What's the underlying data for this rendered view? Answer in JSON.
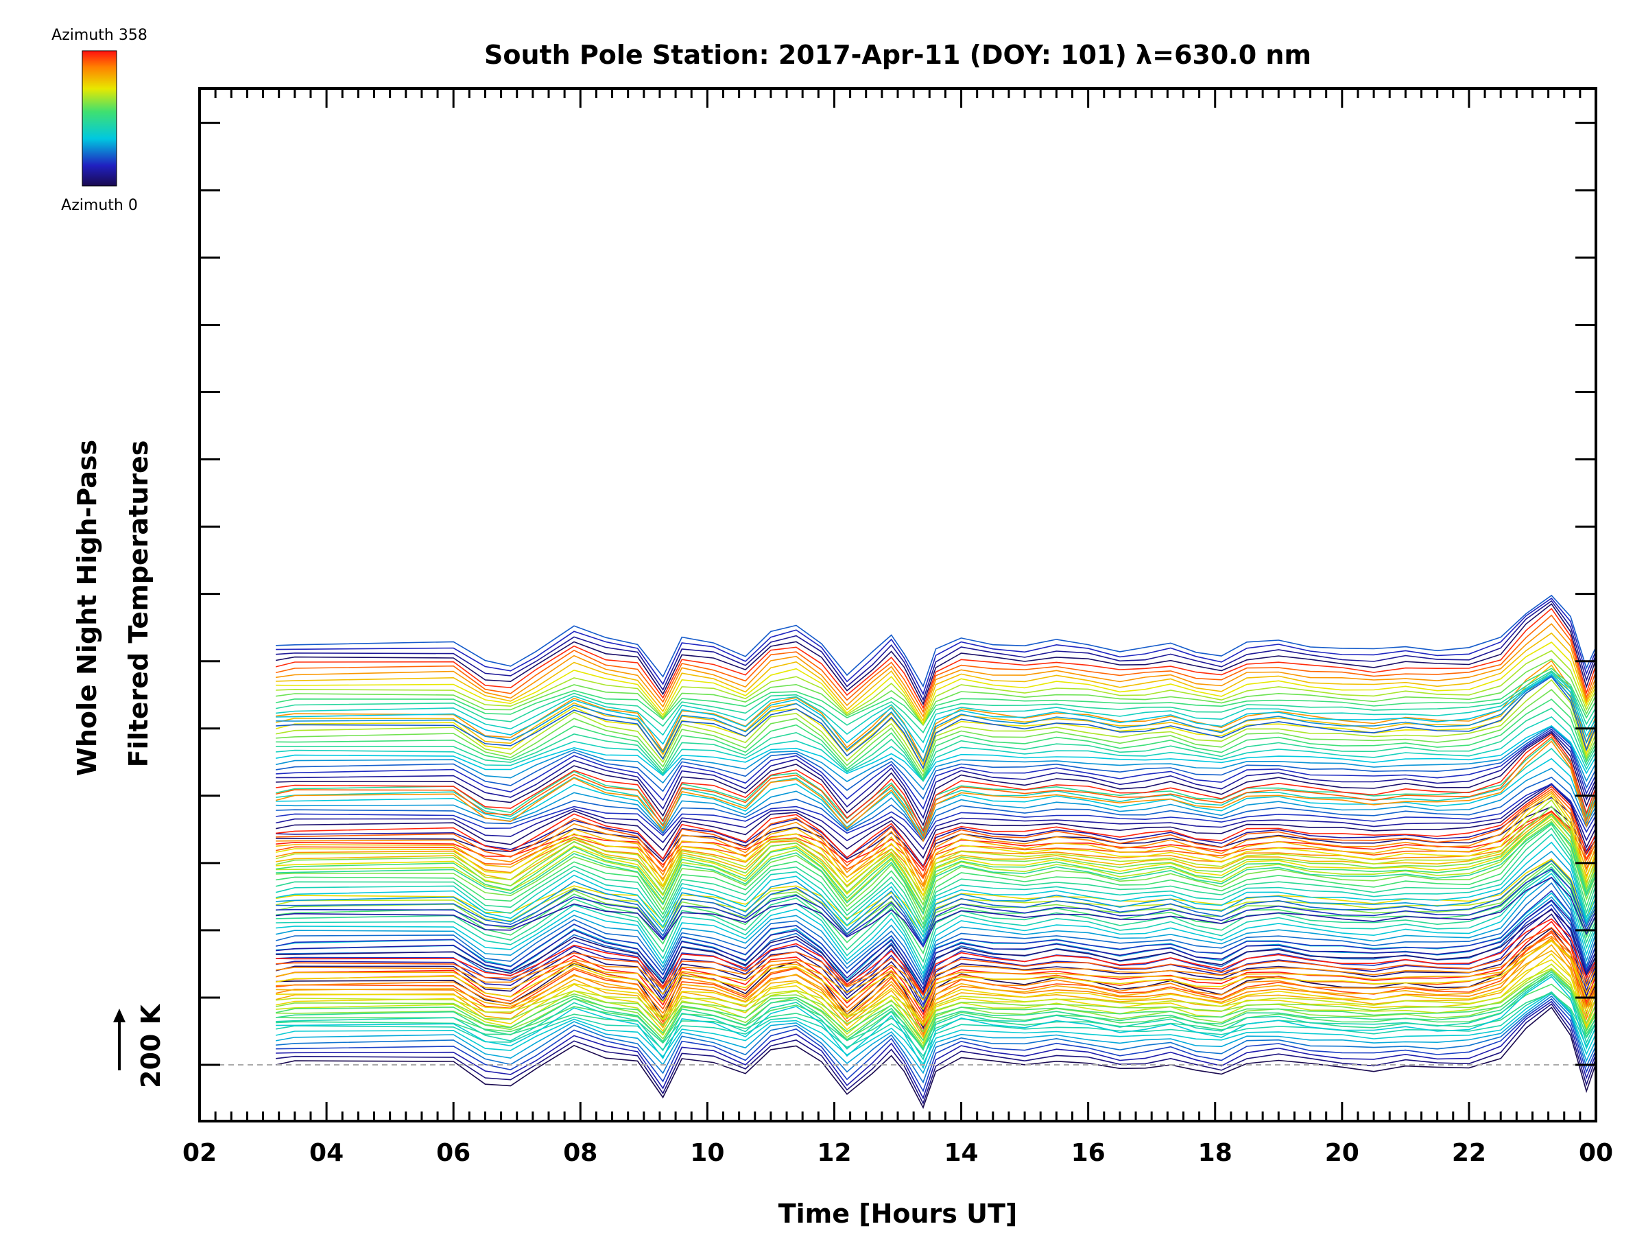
{
  "chart_data": {
    "type": "line",
    "title": "South Pole Station: 2017-Apr-11 (DOY: 101) λ=630.0 nm",
    "xlabel": "Time [Hours UT]",
    "ylabel_line1": "Whole Night High-Pass",
    "ylabel_line2": "Filtered Temperatures",
    "x_tick_labels": [
      "02",
      "04",
      "06",
      "08",
      "10",
      "12",
      "14",
      "16",
      "18",
      "20",
      "22",
      "00"
    ],
    "xlim": [
      2,
      24
    ],
    "scale_bar_label": "200 K",
    "colorbar": {
      "top_label": "Azimuth 358",
      "bottom_label": "Azimuth 0",
      "colormap": "rainbow"
    },
    "n_rows": 7,
    "lines_per_row": 17,
    "time_knots_hours": [
      3.2,
      3.5,
      6.0,
      6.5,
      6.9,
      7.3,
      7.9,
      8.4,
      8.9,
      9.3,
      9.6,
      10.1,
      10.6,
      11.0,
      11.4,
      11.8,
      12.2,
      12.6,
      12.9,
      13.1,
      13.4,
      13.6,
      14.0,
      14.5,
      15.0,
      15.5,
      16.0,
      16.5,
      16.9,
      17.3,
      17.7,
      18.1,
      18.5,
      19.0,
      19.5,
      20.0,
      20.5,
      21.0,
      21.5,
      22.0,
      22.5,
      22.9,
      23.3,
      23.6,
      23.85,
      24.0
    ],
    "base_wave_K": [
      0,
      10,
      15,
      -70,
      -85,
      -20,
      80,
      30,
      10,
      -130,
      30,
      10,
      -40,
      60,
      80,
      10,
      -120,
      -30,
      40,
      -30,
      -170,
      -20,
      30,
      10,
      0,
      20,
      5,
      -20,
      -10,
      5,
      -25,
      -40,
      10,
      20,
      0,
      -10,
      -20,
      -5,
      -15,
      -10,
      30,
      140,
      220,
      120,
      -100,
      0
    ],
    "row_offsets_K": [
      0,
      150,
      330,
      580,
      750,
      1040,
      1320
    ],
    "azimuth_range_deg": [
      0,
      358
    ],
    "colors": {
      "background": "#ffffff",
      "axes": "#000000",
      "zero_line": "#aaaaaa"
    }
  }
}
